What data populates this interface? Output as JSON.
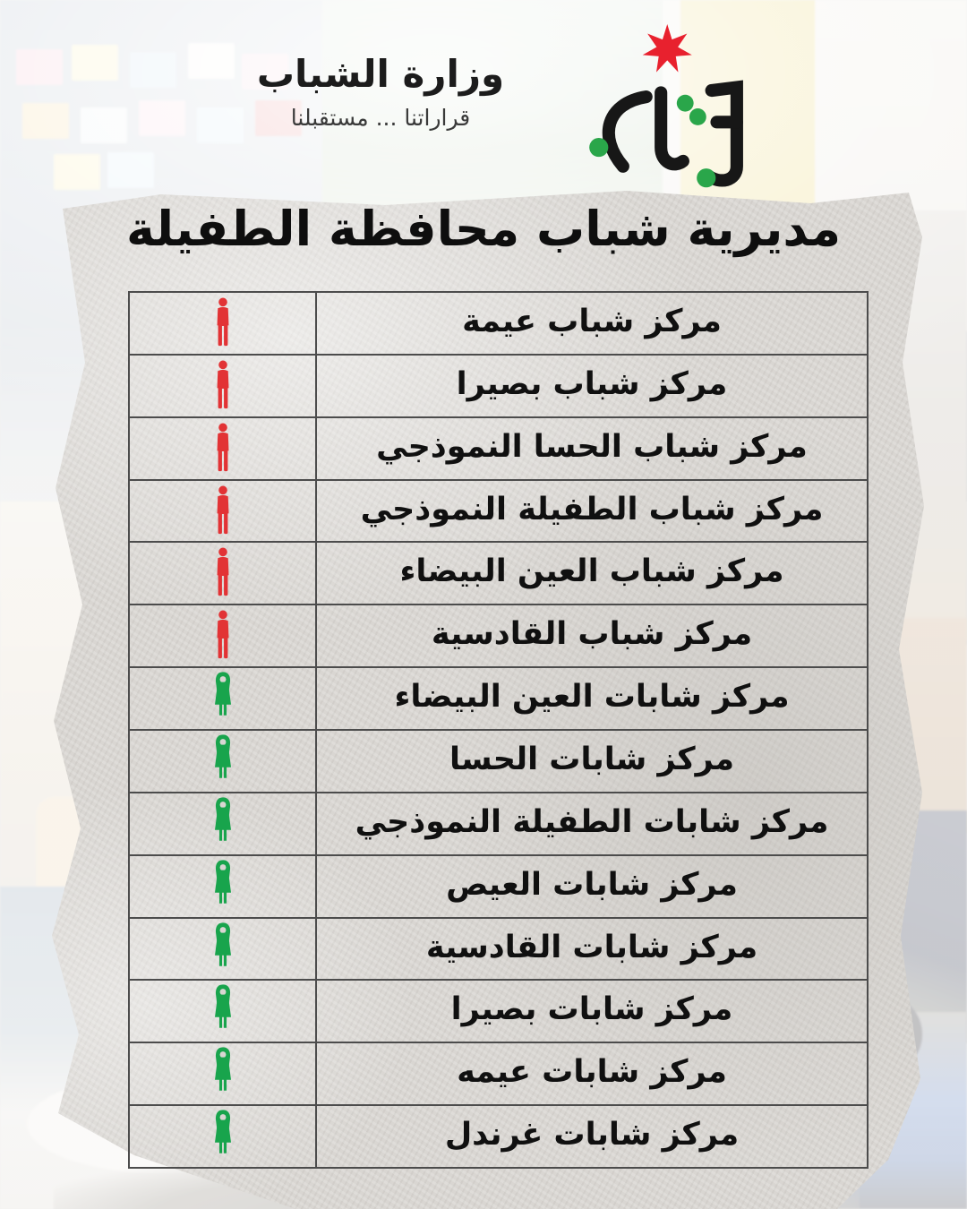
{
  "header": {
    "brand_title": "وزارة الشباب",
    "brand_tagline": "قراراتنا ... مستقبلنا"
  },
  "logo": {
    "star_icon": "seven-pointed-star",
    "calligraphy": "شباب"
  },
  "page": {
    "title": "مديرية شباب محافظة الطفيلة"
  },
  "colors": {
    "male_icon": "#e23335",
    "female_icon": "#18a44c",
    "star_red": "#e8212e",
    "logo_green_dots": "#2aa64a",
    "logo_ink": "#171717",
    "table_border": "#4c4c4c",
    "paper": "#d9d6d2"
  },
  "table": {
    "rows": [
      {
        "icon": "male-person-icon",
        "label": "مركز شباب عيمة"
      },
      {
        "icon": "male-person-icon",
        "label": "مركز شباب بصيرا"
      },
      {
        "icon": "male-person-icon",
        "label": "مركز شباب الحسا النموذجي"
      },
      {
        "icon": "male-person-icon",
        "label": "مركز شباب الطفيلة النموذجي"
      },
      {
        "icon": "male-person-icon",
        "label": "مركز شباب العين البيضاء"
      },
      {
        "icon": "male-person-icon",
        "label": "مركز شباب القادسية"
      },
      {
        "icon": "female-person-icon",
        "label": "مركز شابات العين البيضاء"
      },
      {
        "icon": "female-person-icon",
        "label": "مركز شابات الحسا"
      },
      {
        "icon": "female-person-icon",
        "label": "مركز شابات الطفيلة النموذجي"
      },
      {
        "icon": "female-person-icon",
        "label": "مركز شابات العيص"
      },
      {
        "icon": "female-person-icon",
        "label": "مركز شابات القادسية"
      },
      {
        "icon": "female-person-icon",
        "label": "مركز شابات بصيرا"
      },
      {
        "icon": "female-person-icon",
        "label": "مركز شابات عيمه"
      },
      {
        "icon": "female-person-icon",
        "label": "مركز شابات غرندل"
      }
    ]
  }
}
